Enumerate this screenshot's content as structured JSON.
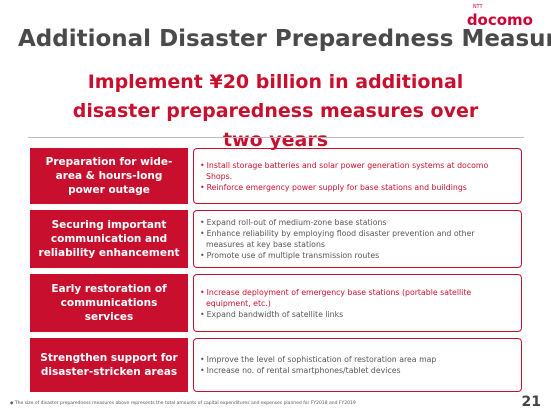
{
  "logo": {
    "small": "NTT",
    "main": "docomo"
  },
  "title": "Additional Disaster Preparedness Measures",
  "subtitle": "Implement ¥20 billion in additional disaster preparedness measures over two years",
  "rows": [
    {
      "heading": "Preparation for wide-area & hours-long power outage",
      "items": [
        "Install storage batteries and solar power generation systems at docomo Shops.",
        "Reinforce emergency power supply for base stations and buildings"
      ]
    },
    {
      "heading": "Securing important communication and reliability enhancement",
      "items": [
        "Expand roll-out of medium-zone base stations",
        "Enhance reliability by employing flood disaster prevention and other measures at key base stations",
        "Promote use of multiple transmission routes"
      ]
    },
    {
      "heading": "Early restoration of communications services",
      "items": [
        "Increase deployment of emergency base stations (portable satellite equipment, etc.)",
        "Expand bandwidth of satellite links"
      ]
    },
    {
      "heading": "Strengthen support for disaster-stricken areas",
      "items": [
        "Improve the level of sophistication of restoration area map",
        "Increase no. of rental smartphones/tablet devices"
      ]
    }
  ],
  "footnote": "The size of disaster preparedness measures above represents the total amounts of capital expenditures and expenses planned for FY2018 and FY2019",
  "page_number": "21"
}
